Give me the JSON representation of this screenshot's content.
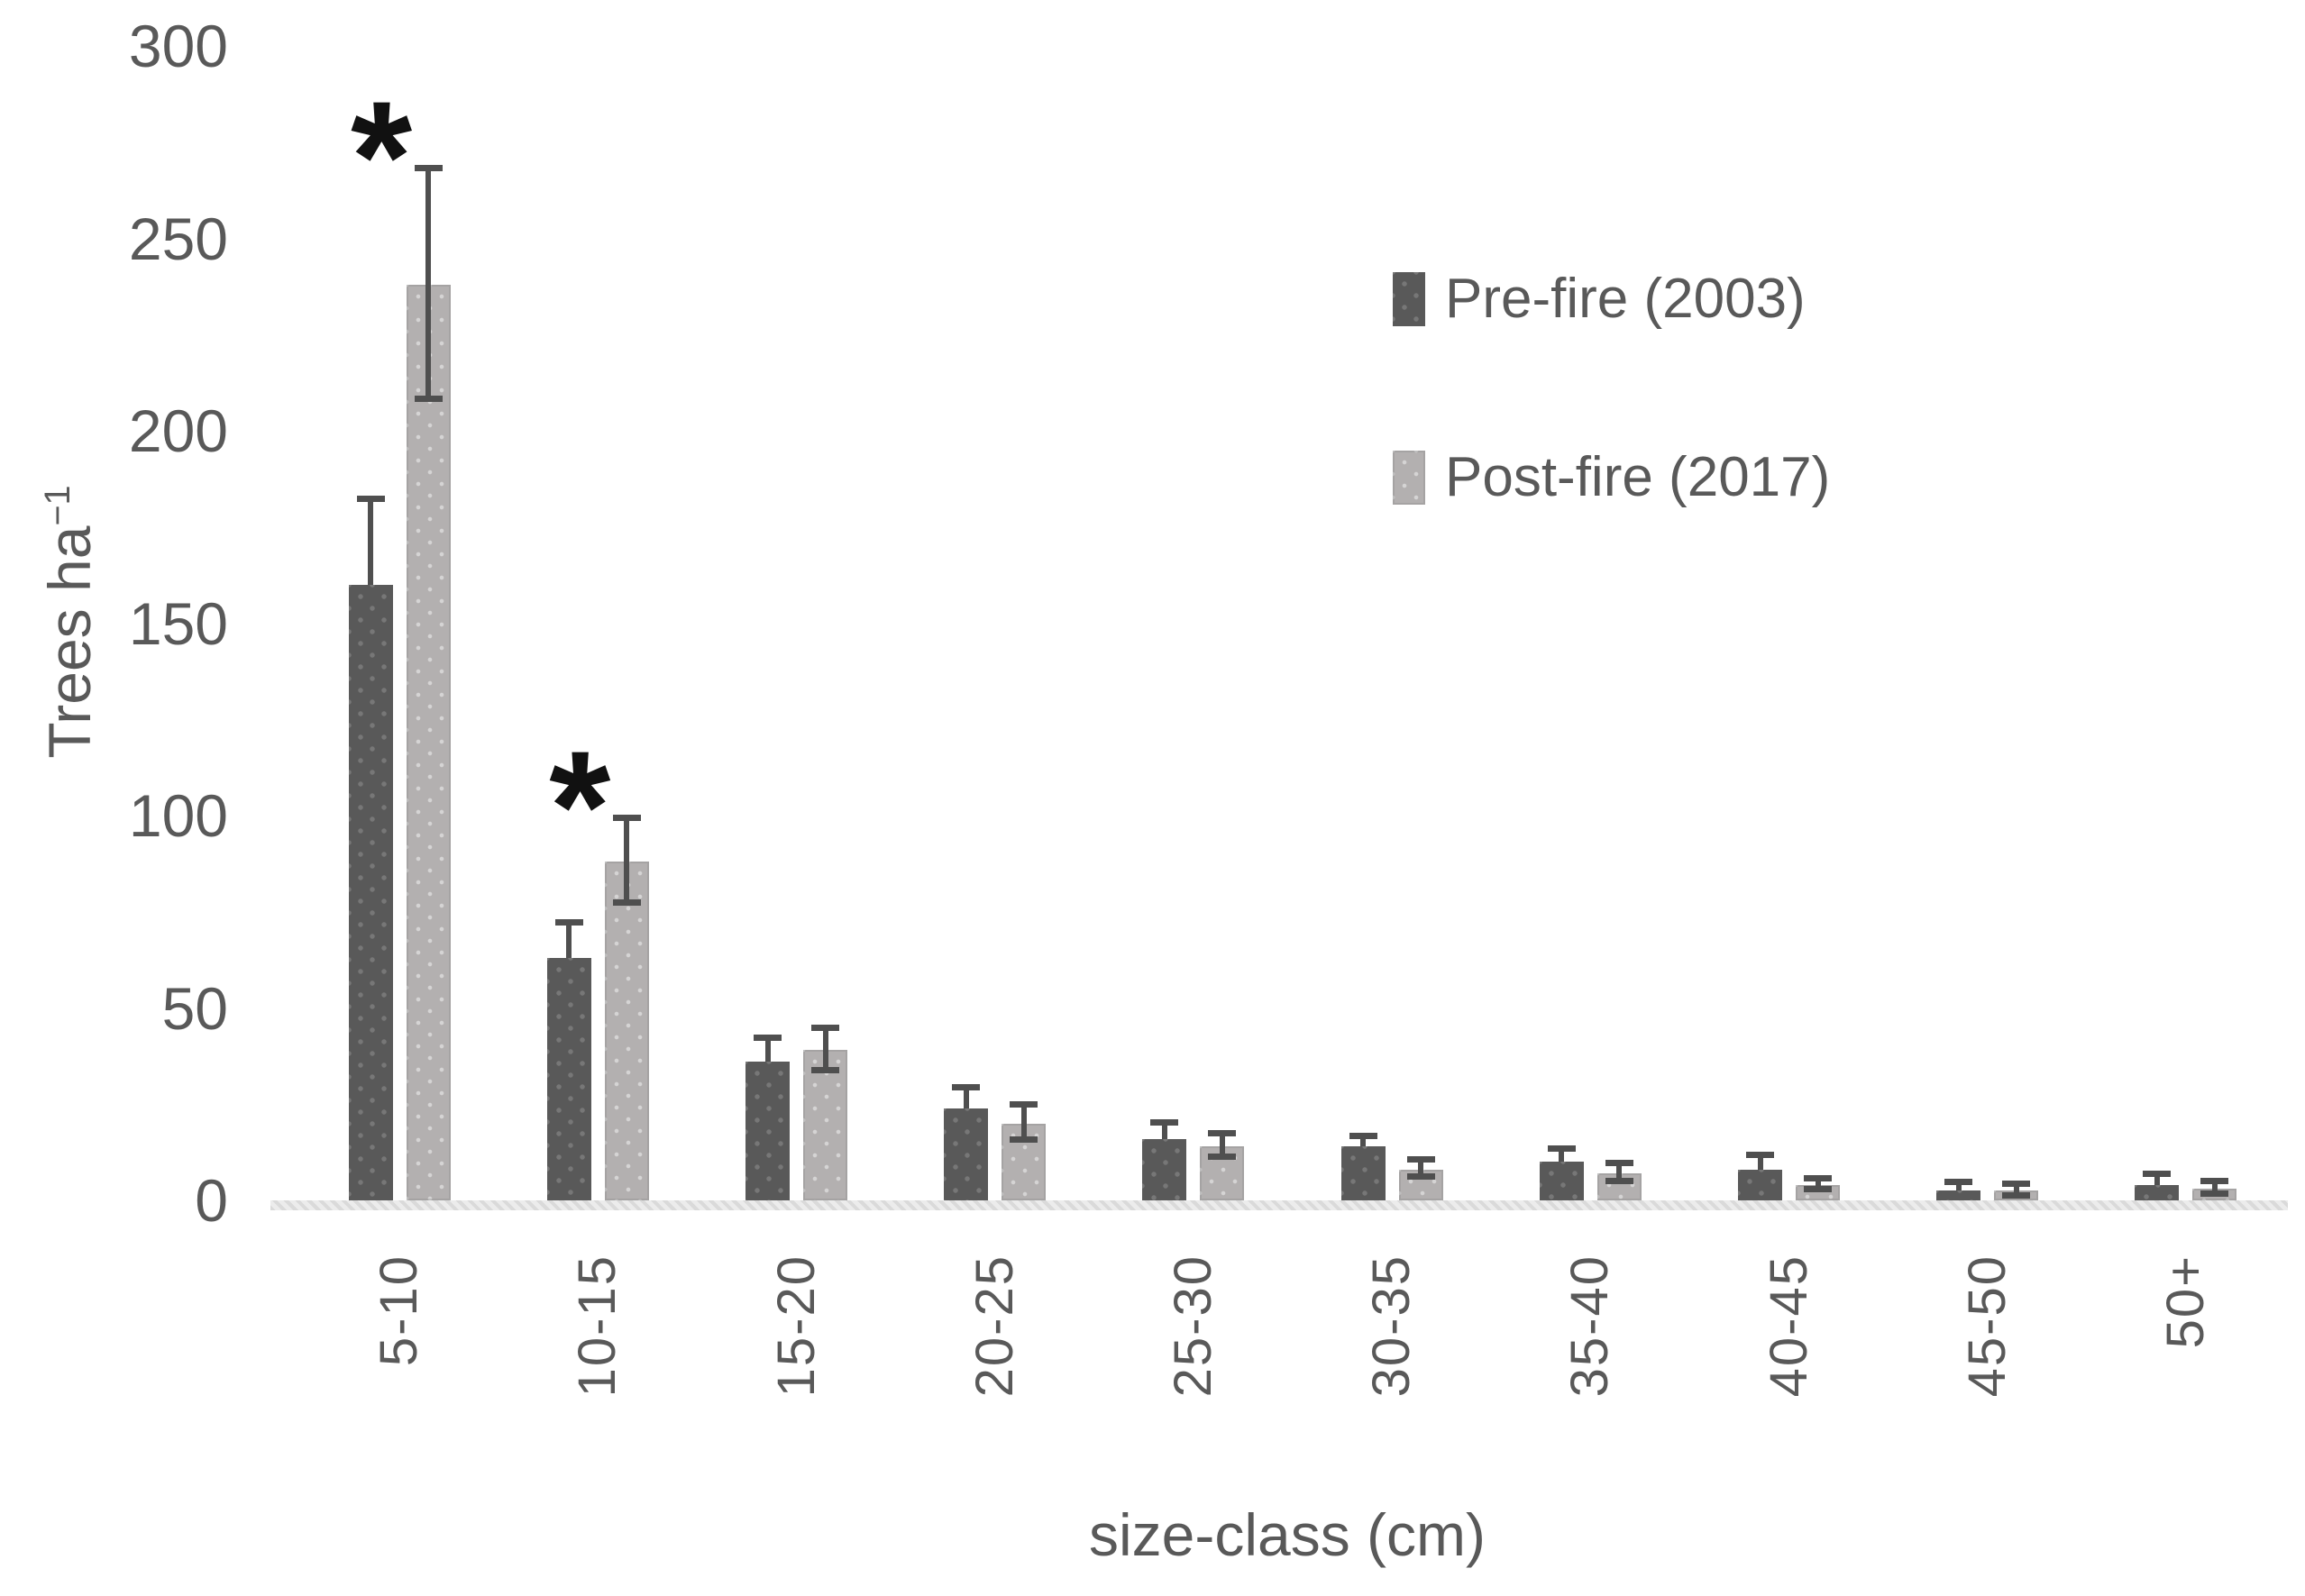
{
  "chart_data": {
    "type": "bar",
    "xlabel": "size-class (cm)",
    "ylabel": "Trees ha⁻¹",
    "ylabel_parts": {
      "base": "Trees ha",
      "sup": "−1"
    },
    "categories": [
      "5-10",
      "10-15",
      "15-20",
      "20-25",
      "25-30",
      "30-35",
      "35-40",
      "40-45",
      "45-50",
      "50+"
    ],
    "series": [
      {
        "name": "Pre-fire (2003)",
        "color": "#595959",
        "values": [
          160,
          63,
          36,
          24,
          16,
          14,
          10,
          8,
          2.5,
          4
        ],
        "errors": [
          22,
          9,
          6,
          5,
          4,
          2.5,
          3,
          3.5,
          2,
          2.5
        ]
      },
      {
        "name": "Post-fire (2017)",
        "color": "#b3b0b0",
        "values": [
          238,
          88,
          39,
          20,
          14,
          8,
          7,
          4,
          2.5,
          3
        ],
        "errors": [
          30,
          11,
          5.5,
          4.5,
          3,
          2.2,
          2.4,
          1.5,
          1.5,
          1.7
        ]
      }
    ],
    "yticks": [
      0,
      50,
      100,
      150,
      200,
      250,
      300
    ],
    "ylim": [
      0,
      300
    ],
    "grid": false,
    "legend_position": "upper right",
    "significance": {
      "symbol": "*",
      "categories": [
        "5-10",
        "10-15"
      ]
    },
    "colors": {
      "error_bar": "#4f4f4f",
      "axis_text": "#595959",
      "baseline_strip": "#ececec"
    }
  }
}
